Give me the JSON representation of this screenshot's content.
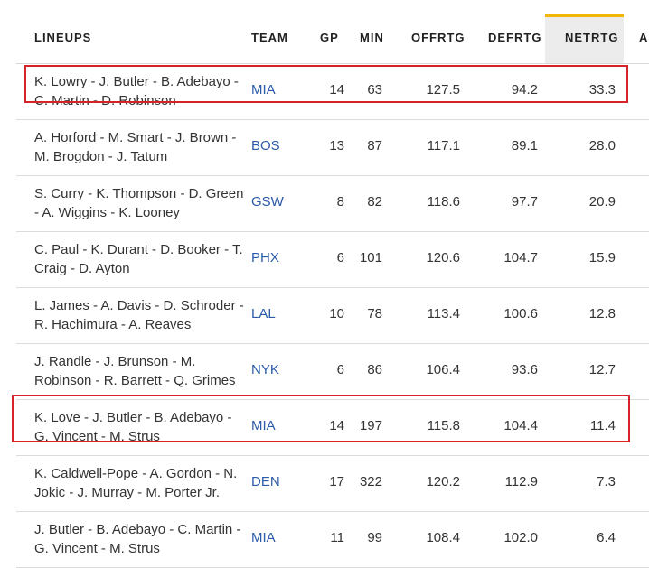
{
  "headers": {
    "lineups": "LINEUPS",
    "team": "TEAM",
    "gp": "GP",
    "min": "MIN",
    "offrtg": "OFFRTG",
    "defrtg": "DEFRTG",
    "netrtg": "NETRTG",
    "overflow": "A"
  },
  "sorted_column": "NETRTG",
  "highlight_color": "#d6232a",
  "sort_indicator_color": "#f2b705",
  "team_link_color": "#2b5aa8",
  "rows": [
    {
      "lineup_line1": "K. Lowry - J. Butler - B. Adebayo -",
      "lineup_line2": "C. Martin - D. Robinson",
      "team": "MIA",
      "gp": "14",
      "min": "63",
      "offrtg": "127.5",
      "defrtg": "94.2",
      "netrtg": "33.3"
    },
    {
      "lineup_line1": "A. Horford - M. Smart - J. Brown -",
      "lineup_line2": "M. Brogdon - J. Tatum",
      "team": "BOS",
      "gp": "13",
      "min": "87",
      "offrtg": "117.1",
      "defrtg": "89.1",
      "netrtg": "28.0"
    },
    {
      "lineup_line1": "S. Curry - K. Thompson - D. Green",
      "lineup_line2": "- A. Wiggins - K. Looney",
      "team": "GSW",
      "gp": "8",
      "min": "82",
      "offrtg": "118.6",
      "defrtg": "97.7",
      "netrtg": "20.9"
    },
    {
      "lineup_line1": "C. Paul - K. Durant - D. Booker - T.",
      "lineup_line2": "Craig - D. Ayton",
      "team": "PHX",
      "gp": "6",
      "min": "101",
      "offrtg": "120.6",
      "defrtg": "104.7",
      "netrtg": "15.9"
    },
    {
      "lineup_line1": "L. James - A. Davis - D. Schroder -",
      "lineup_line2": "R. Hachimura - A. Reaves",
      "team": "LAL",
      "gp": "10",
      "min": "78",
      "offrtg": "113.4",
      "defrtg": "100.6",
      "netrtg": "12.8"
    },
    {
      "lineup_line1": "J. Randle - J. Brunson - M.",
      "lineup_line2": "Robinson - R. Barrett - Q. Grimes",
      "team": "NYK",
      "gp": "6",
      "min": "86",
      "offrtg": "106.4",
      "defrtg": "93.6",
      "netrtg": "12.7"
    },
    {
      "lineup_line1": "K. Love - J. Butler - B. Adebayo -",
      "lineup_line2": "G. Vincent - M. Strus",
      "team": "MIA",
      "gp": "14",
      "min": "197",
      "offrtg": "115.8",
      "defrtg": "104.4",
      "netrtg": "11.4"
    },
    {
      "lineup_line1": "K. Caldwell-Pope - A. Gordon - N.",
      "lineup_line2": "Jokic - J. Murray - M. Porter Jr.",
      "team": "DEN",
      "gp": "17",
      "min": "322",
      "offrtg": "120.2",
      "defrtg": "112.9",
      "netrtg": "7.3"
    },
    {
      "lineup_line1": "J. Butler - B. Adebayo - C. Martin -",
      "lineup_line2": "G. Vincent - M. Strus",
      "team": "MIA",
      "gp": "11",
      "min": "99",
      "offrtg": "108.4",
      "defrtg": "102.0",
      "netrtg": "6.4"
    }
  ]
}
